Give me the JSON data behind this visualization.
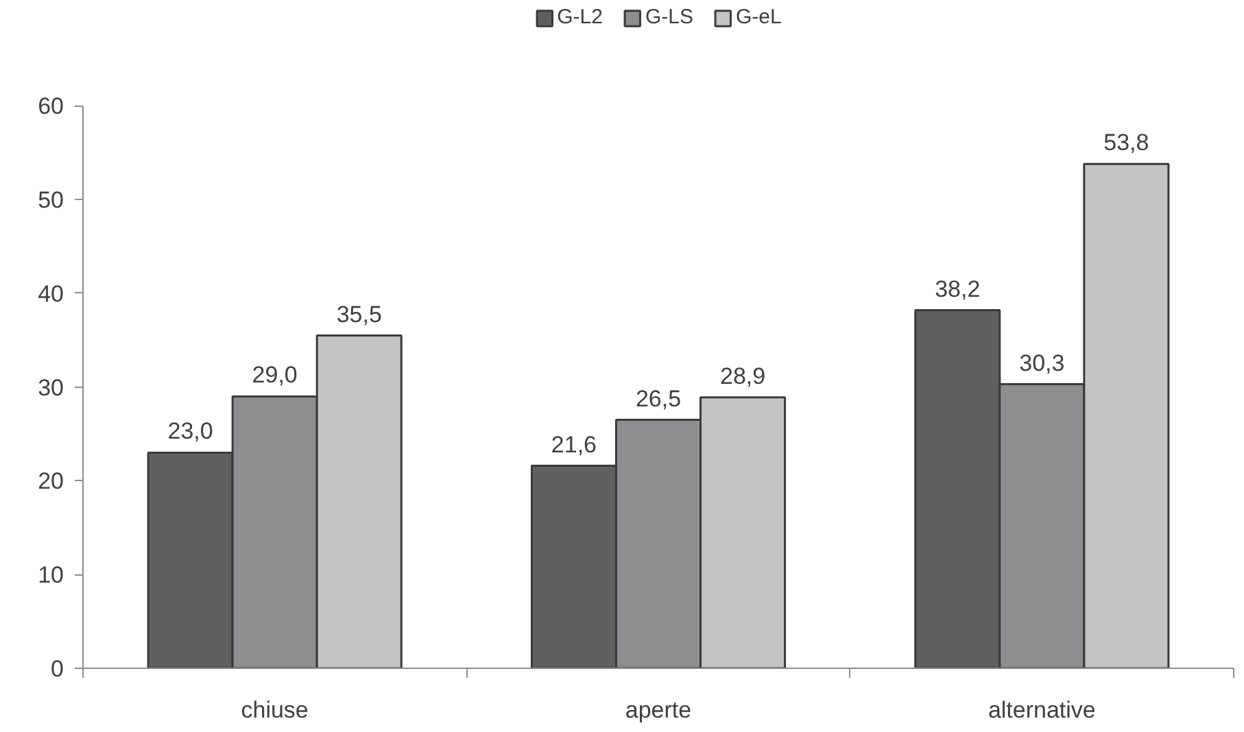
{
  "chart_data": {
    "type": "bar",
    "categories": [
      "chiuse",
      "aperte",
      "alternative"
    ],
    "series": [
      {
        "name": "G-L2",
        "color": "#606060",
        "values": [
          23.0,
          21.6,
          38.2
        ],
        "value_labels": [
          "23,0",
          "21,6",
          "38,2"
        ]
      },
      {
        "name": "G-LS",
        "color": "#8e8e90",
        "values": [
          29.0,
          26.5,
          30.3
        ],
        "value_labels": [
          "29,0",
          "26,5",
          "30,3"
        ]
      },
      {
        "name": "G-eL",
        "color": "#c4c4c4",
        "values": [
          35.5,
          28.9,
          53.8
        ],
        "value_labels": [
          "35,5",
          "28,9",
          "53,8"
        ]
      }
    ],
    "ylim": [
      0,
      60
    ],
    "yticks": [
      0,
      10,
      20,
      30,
      40,
      50,
      60
    ],
    "grid": false,
    "legend": "top"
  }
}
